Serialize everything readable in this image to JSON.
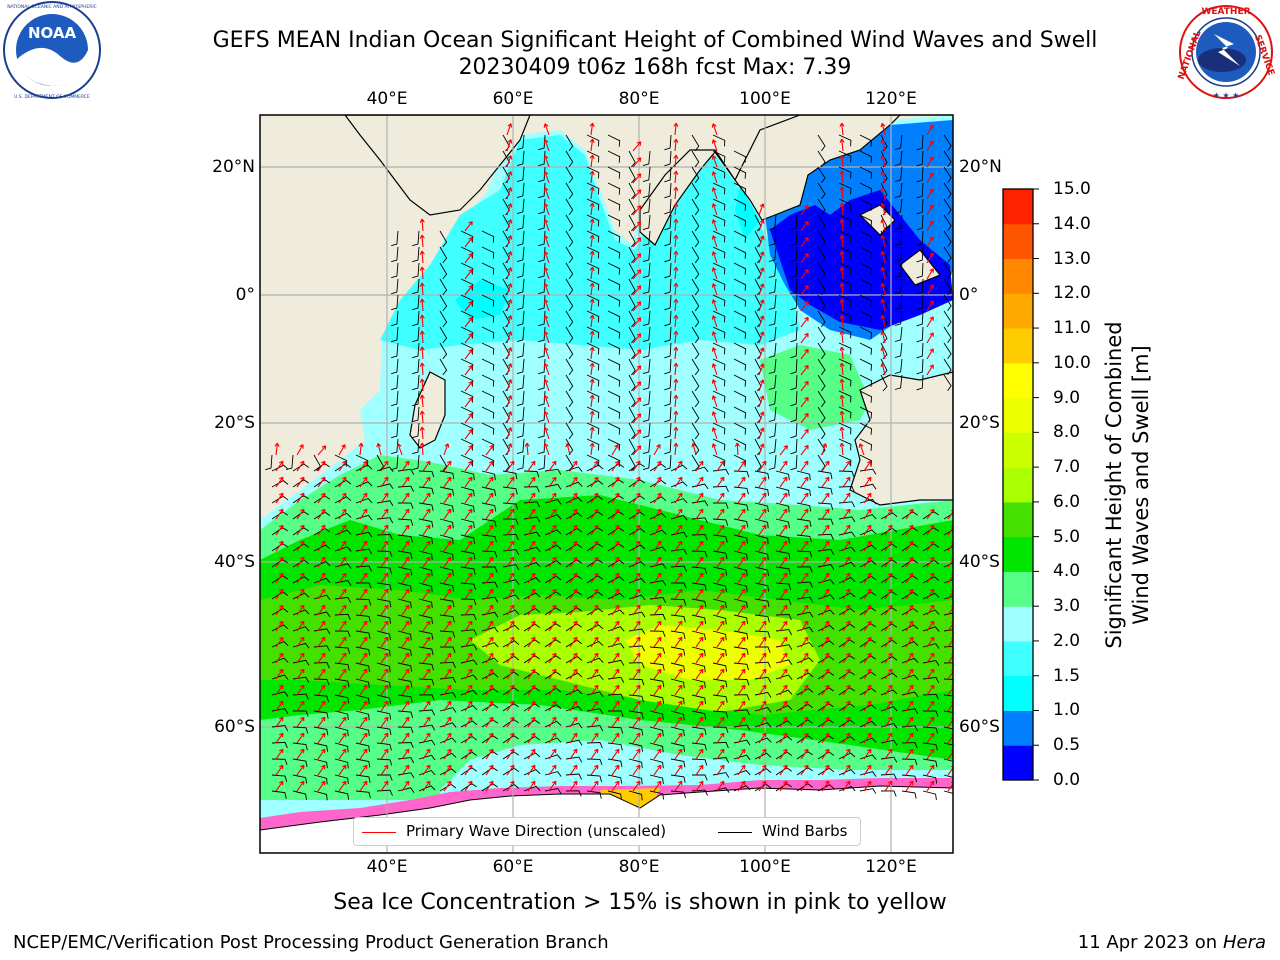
{
  "header": {
    "title_line1": "GEFS MEAN Indian Ocean Significant Height of Combined Wind Waves and Swell",
    "title_line2": "20230409 t06z 168h fcst   Max: 7.39"
  },
  "logos": {
    "left": {
      "name": "NOAA",
      "text": "NOAA",
      "ring_text": "NATIONAL OCEANIC AND ATMOSPHERIC ADMINISTRATION · U.S. DEPARTMENT OF COMMERCE"
    },
    "right": {
      "name": "National Weather Service",
      "ring_text": "NATIONAL WEATHER SERVICE"
    }
  },
  "map": {
    "lon_labels": [
      "40°E",
      "60°E",
      "80°E",
      "100°E",
      "120°E"
    ],
    "lat_labels": [
      "20°N",
      "0°",
      "20°S",
      "40°S",
      "60°S"
    ],
    "colors": {
      "land": "#efecdc",
      "wave_arrow": "#ff0000",
      "wind_barb": "#000000",
      "grid": "#b0b0b0",
      "sea_ice": "#ff66cc"
    }
  },
  "legend": {
    "wave_label": "Primary Wave Direction (unscaled)",
    "wind_label": "Wind Barbs"
  },
  "colorbar": {
    "label_line1": "Significant Height of Combined",
    "label_line2": "Wind Waves and Swell [m]",
    "ticks": [
      "0.0",
      "0.5",
      "1.0",
      "1.5",
      "2.0",
      "3.0",
      "4.0",
      "5.0",
      "6.0",
      "7.0",
      "8.0",
      "9.0",
      "10.0",
      "11.0",
      "12.0",
      "13.0",
      "14.0",
      "15.0"
    ],
    "colors": [
      "#0000ff",
      "#0080ff",
      "#00ffff",
      "#40ffff",
      "#a0ffff",
      "#55ff88",
      "#00e600",
      "#44e000",
      "#aaff00",
      "#ccff00",
      "#eeff00",
      "#ffff00",
      "#ffcc00",
      "#ffaa00",
      "#ff8800",
      "#ff5500",
      "#ff2200"
    ]
  },
  "caption": "Sea Ice Concentration > 15% is shown in pink to yellow",
  "footer": {
    "left": "NCEP/EMC/Verification Post Processing Product Generation Branch",
    "date": "11 Apr 2023 on ",
    "machine": "Hera"
  }
}
